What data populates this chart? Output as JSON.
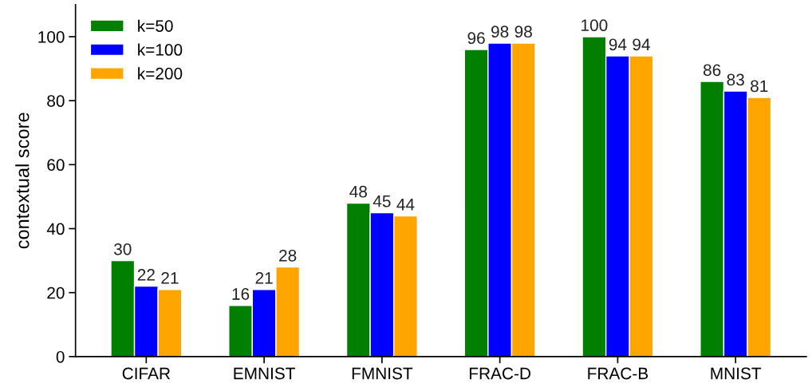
{
  "chart_data": {
    "type": "bar",
    "ylabel": "contextual score",
    "categories": [
      "CIFAR",
      "EMNIST",
      "FMNIST",
      "FRAC-D",
      "FRAC-B",
      "MNIST"
    ],
    "series": [
      {
        "name": "k=50",
        "color": "#007f00",
        "values": [
          30,
          16,
          48,
          96,
          100,
          86
        ]
      },
      {
        "name": "k=100",
        "color": "#0000ff",
        "values": [
          22,
          21,
          45,
          98,
          94,
          83
        ]
      },
      {
        "name": "k=200",
        "color": "#ffa500",
        "values": [
          21,
          28,
          44,
          98,
          94,
          81
        ]
      }
    ],
    "ylim": [
      0,
      110
    ],
    "yticks": [
      0,
      20,
      40,
      60,
      80,
      100
    ],
    "data_labels": true,
    "legend": "top left",
    "grid": false
  }
}
